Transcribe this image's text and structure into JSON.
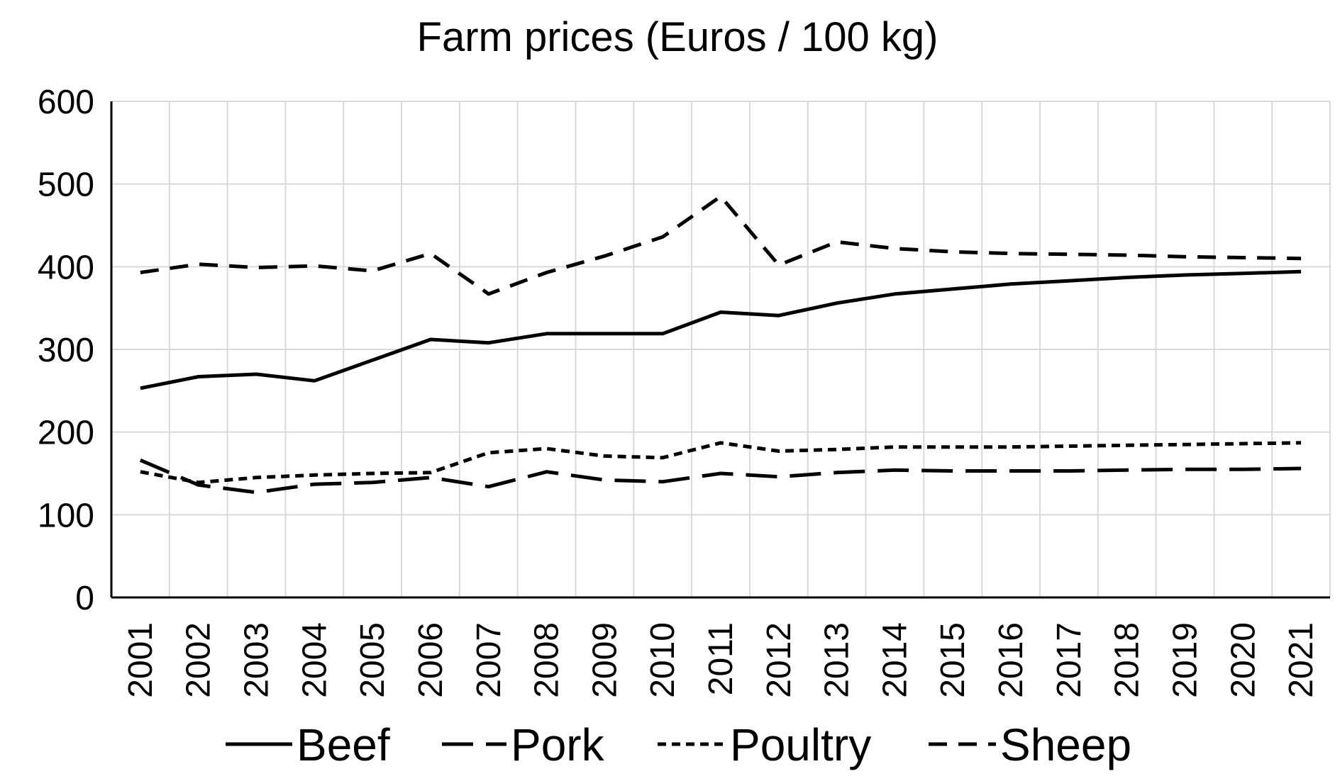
{
  "chart_data": {
    "type": "line",
    "title": "Farm prices (Euros / 100 kg)",
    "xlabel": "",
    "ylabel": "",
    "ylim": [
      0,
      600
    ],
    "y_ticks": [
      0,
      100,
      200,
      300,
      400,
      500,
      600
    ],
    "grid": true,
    "legend_position": "bottom",
    "categories": [
      "2001",
      "2002",
      "2003",
      "2004",
      "2005",
      "2006",
      "2007",
      "2008",
      "2009",
      "2010",
      "2011",
      "2012",
      "2013",
      "2014",
      "2015",
      "2016",
      "2017",
      "2018",
      "2019",
      "2020",
      "2021"
    ],
    "series": [
      {
        "name": "Beef",
        "dash": "solid",
        "values": [
          253,
          267,
          270,
          262,
          287,
          312,
          308,
          319,
          319,
          319,
          345,
          341,
          356,
          367,
          373,
          379,
          383,
          387,
          390,
          392,
          394
        ]
      },
      {
        "name": "Pork",
        "dash": "long-dash",
        "values": [
          166,
          136,
          127,
          137,
          139,
          145,
          134,
          152,
          142,
          140,
          150,
          146,
          151,
          154,
          153,
          153,
          153,
          154,
          155,
          155,
          156
        ]
      },
      {
        "name": "Poultry",
        "dash": "short-dash",
        "values": [
          152,
          139,
          145,
          148,
          150,
          151,
          175,
          180,
          171,
          169,
          187,
          177,
          179,
          182,
          182,
          182,
          183,
          184,
          185,
          186,
          187
        ]
      },
      {
        "name": "Sheep",
        "dash": "medium-dash",
        "values": [
          393,
          403,
          399,
          401,
          395,
          416,
          367,
          393,
          413,
          436,
          485,
          402,
          430,
          422,
          418,
          416,
          415,
          414,
          412,
          411,
          410
        ]
      }
    ]
  },
  "style": {
    "line_color": "#000000",
    "grid_color": "#d9d9d9",
    "axis_color": "#000000"
  }
}
